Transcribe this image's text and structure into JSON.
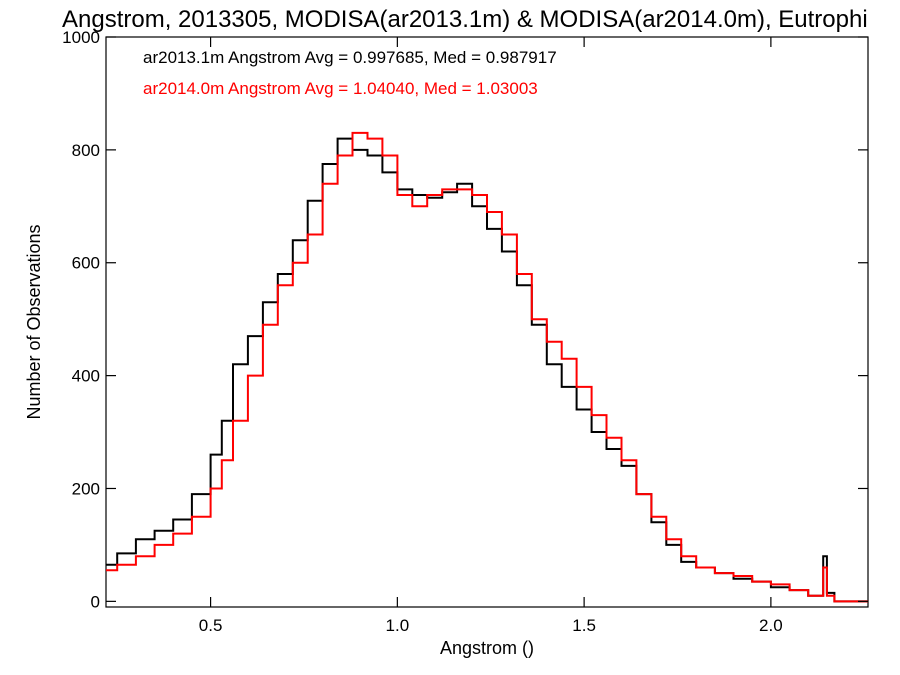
{
  "chart_data": {
    "type": "line",
    "style": "step histogram",
    "title": "Angstrom, 2013305, MODISA(ar2013.1m) & MODISA(ar2014.0m), Eutrophi",
    "xlabel": "Angstrom ()",
    "ylabel": "Number of Observations",
    "xlim": [
      0.22,
      2.26
    ],
    "ylim": [
      -10,
      1000
    ],
    "xticks": [
      0.5,
      1.0,
      1.5,
      2.0
    ],
    "xtick_labels": [
      "0.5",
      "1.0",
      "1.5",
      "2.0"
    ],
    "yticks": [
      0,
      200,
      400,
      600,
      800,
      1000
    ],
    "ytick_labels": [
      "0",
      "200",
      "400",
      "600",
      "800",
      "1000"
    ],
    "grid": false,
    "legend_position": "top-left",
    "legend": [
      "ar2013.1m Angstrom Avg = 0.997685, Med = 0.987917",
      "ar2014.0m Angstrom Avg = 1.04040, Med = 1.03003"
    ],
    "series": [
      {
        "name": "ar2013.1m",
        "color": "#000000",
        "x": [
          0.22,
          0.25,
          0.3,
          0.35,
          0.4,
          0.45,
          0.5,
          0.53,
          0.56,
          0.6,
          0.64,
          0.68,
          0.72,
          0.76,
          0.8,
          0.84,
          0.88,
          0.92,
          0.96,
          1.0,
          1.04,
          1.08,
          1.12,
          1.16,
          1.2,
          1.24,
          1.28,
          1.32,
          1.36,
          1.4,
          1.44,
          1.48,
          1.52,
          1.56,
          1.6,
          1.64,
          1.68,
          1.72,
          1.76,
          1.8,
          1.85,
          1.9,
          1.95,
          2.0,
          2.05,
          2.1,
          2.14,
          2.15,
          2.17,
          2.26
        ],
        "y": [
          65,
          85,
          110,
          125,
          145,
          190,
          260,
          320,
          420,
          470,
          530,
          580,
          640,
          710,
          775,
          820,
          800,
          790,
          760,
          730,
          720,
          715,
          725,
          740,
          700,
          660,
          620,
          560,
          490,
          420,
          380,
          340,
          300,
          270,
          240,
          190,
          140,
          100,
          70,
          60,
          50,
          40,
          35,
          25,
          20,
          10,
          80,
          15,
          0,
          0
        ]
      },
      {
        "name": "ar2014.0m",
        "color": "#ff0000",
        "x": [
          0.22,
          0.25,
          0.3,
          0.35,
          0.4,
          0.45,
          0.5,
          0.53,
          0.56,
          0.6,
          0.64,
          0.68,
          0.72,
          0.76,
          0.8,
          0.84,
          0.88,
          0.92,
          0.96,
          1.0,
          1.04,
          1.08,
          1.12,
          1.16,
          1.2,
          1.24,
          1.28,
          1.32,
          1.36,
          1.4,
          1.44,
          1.48,
          1.52,
          1.56,
          1.6,
          1.64,
          1.68,
          1.72,
          1.76,
          1.8,
          1.85,
          1.9,
          1.95,
          2.0,
          2.05,
          2.1,
          2.14,
          2.15,
          2.17,
          2.26
        ],
        "y": [
          55,
          65,
          80,
          100,
          120,
          150,
          200,
          250,
          320,
          400,
          490,
          560,
          600,
          650,
          740,
          790,
          830,
          820,
          790,
          720,
          700,
          720,
          730,
          730,
          720,
          690,
          650,
          580,
          500,
          460,
          430,
          380,
          330,
          290,
          250,
          190,
          150,
          110,
          80,
          60,
          50,
          45,
          35,
          30,
          20,
          10,
          60,
          10,
          0,
          0
        ]
      }
    ]
  }
}
